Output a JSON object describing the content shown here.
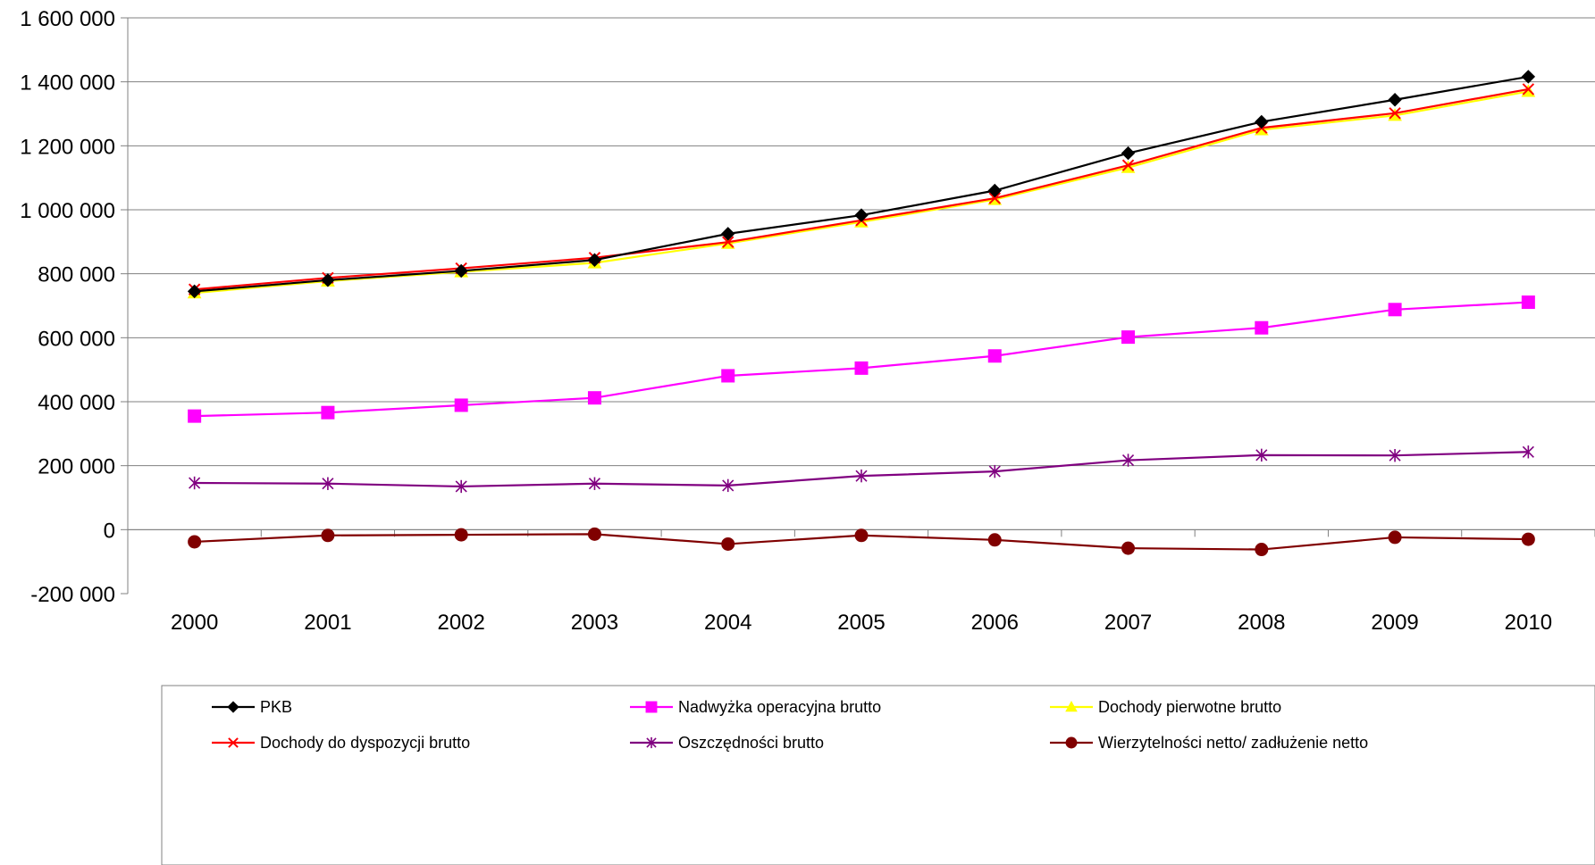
{
  "chart_data": {
    "type": "line",
    "categories": [
      "2000",
      "2001",
      "2002",
      "2003",
      "2004",
      "2005",
      "2006",
      "2007",
      "2008",
      "2009",
      "2010"
    ],
    "ylim": [
      -200000,
      1600000
    ],
    "yticks": [
      -200000,
      0,
      200000,
      400000,
      600000,
      800000,
      1000000,
      1200000,
      1400000,
      1600000
    ],
    "ytick_labels": [
      "-200 000",
      "0",
      "200 000",
      "400 000",
      "600 000",
      "800 000",
      "1 000 000",
      "1 200 000",
      "1 400 000",
      "1 600 000"
    ],
    "grid": "horizontal",
    "legend_position": "bottom",
    "series": [
      {
        "name": "PKB",
        "color": "#000000",
        "marker": "diamond",
        "values": [
          745000,
          780000,
          809000,
          843000,
          925000,
          983000,
          1060000,
          1177000,
          1275000,
          1344000,
          1416000
        ]
      },
      {
        "name": "Nadwyżka operacyjna brutto",
        "color": "#ff00ff",
        "marker": "square",
        "values": [
          355000,
          366000,
          389000,
          412000,
          481000,
          505000,
          543000,
          602000,
          631000,
          688000,
          711000
        ]
      },
      {
        "name": "Dochody pierwotne brutto",
        "color": "#ffff00",
        "marker": "triangle",
        "values": [
          740000,
          777000,
          806000,
          834000,
          895000,
          962000,
          1032000,
          1132000,
          1250000,
          1295000,
          1370000
        ]
      },
      {
        "name": "Dochody do dyspozycji brutto",
        "color": "#ff0000",
        "marker": "x",
        "values": [
          751000,
          787000,
          817000,
          850000,
          899000,
          967000,
          1036000,
          1139000,
          1256000,
          1302000,
          1377000
        ]
      },
      {
        "name": "Oszczędności brutto",
        "color": "#800080",
        "marker": "star",
        "values": [
          146000,
          144000,
          135000,
          144000,
          138000,
          168000,
          182000,
          217000,
          233000,
          232000,
          243000
        ]
      },
      {
        "name": "Wierzytelności netto/ zadłużenie netto",
        "color": "#800000",
        "marker": "circle",
        "values": [
          -38000,
          -18000,
          -16000,
          -14000,
          -45000,
          -18000,
          -32000,
          -58000,
          -62000,
          -24000,
          -30000
        ]
      }
    ]
  }
}
